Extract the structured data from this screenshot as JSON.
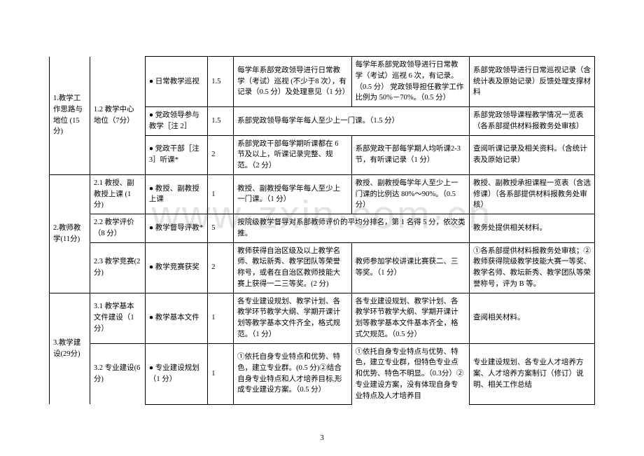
{
  "watermark": "www·zxin·com·cn",
  "page_number": "3",
  "sections": {
    "s1": {
      "title": "1.教学工作思路与地位 (15分)",
      "sub": {
        "s1_2": "1.2 教学中心地位（7分）"
      },
      "rows": {
        "r1": {
          "item": "● 日常教学巡视",
          "score": "1.5",
          "col5": "每学年系部党政领导进行日常教学（考试）巡视 (不少于8 次），有记录（0.5 分）及处理意见（1 分）",
          "col6": "每学年系部党政领导进行日常教学（考试）巡视 6 次，有记录。（0.5 分） 党政领导担任教学工作比例为 50%－70%。（0.5 分）",
          "col7": "系部党政领导进行日常巡视记录（含统计表及原始记录）反馈处理支撑材料"
        },
        "r2": {
          "item": "● 党政领导参与教学［注 2］",
          "score": "1.5",
          "col5": "系部党政领导每学年每人至少上一门课。（1.5 分）",
          "col6": "",
          "col7": "系部党政领导课程教学情况一览表（各系部提供材料报教务处审核）"
        },
        "r3": {
          "item": "● 党政干部［注 3］听课*",
          "score": "2",
          "col5": "系部党政干部每学期听课都在 6 节及以上，听课记录完整、规范。（2 分）",
          "col6": "系部党政干部每学期人均听课2-3 节，有听课记录（1 分）",
          "col7": "查阅听课记录及相关资料。（含统计表及原始记录）"
        }
      }
    },
    "s2": {
      "title": "2.教师教学(11分)",
      "rows": {
        "r1": {
          "sub": "2.1 教授、副教授上课 (1 分)",
          "item": "● 教授、副教授上课",
          "score": "1",
          "col5": "教授、副教授每学年每人至少上一门课。（1 分）",
          "col6": "教授、副教授每学年人至少上一门课的比例达 80%～90%。（0.5 分）",
          "col7": "教授、副教授承担课程一览表（含选修课）（各系部提供材料报教务处审核）"
        },
        "r2": {
          "sub": "2.2 教学评价（8 分）",
          "item": "● 教学督导评教*",
          "score": "5",
          "col5": "按院级教学督导对系部教师评价的平均分排名，第 1 名得 5 分，依次类推。",
          "col6": "",
          "col7": "教务处提供相关材料。"
        },
        "r3": {
          "sub": "2.3 教学竞赛(2 分)",
          "item": "● 教学竞赛获奖",
          "score": "2",
          "col5": "教师获得自治区级及以上教学名师、教坛新秀、教学团队等荣誉称号，或者在自治区教师技能大赛上获得一二三等奖。(2 分)",
          "col6": "教师参加学校讲课比赛获二、三等奖。（1 分）",
          "col7": "①各系部提供材料报教务处审核；②教师获得院级教学技能大赛一等奖、教学名师、教坛新秀、教学团队等荣誉称号，评为 B 等。"
        }
      }
    },
    "s3": {
      "title": "3.教学建设(29分)",
      "rows": {
        "r1": {
          "sub": "3.1 教学基本文件建设（1 分）",
          "item": "● 教学基本文件",
          "score": "1",
          "col5": "各专业建设规划、教学计划、各教学环节教学大纲、学期开课计划等教学基本文件齐全，格式规范。（1 分）",
          "col6": "各专业建设规划、教学计划、各教学环节教学大纲、学期开课计划等教学基本文件基本齐全，格式欠规范。（0.5 分）",
          "col7": "查阅相关材料。"
        },
        "r2": {
          "sub": "3.2 专业建设(6 分)",
          "item": "● 专业建设规划（1 分）",
          "score": "1",
          "col5": "①依托自身专业特点和优势、特色，建立专业群。(0.5 分)②结合自身专业特点和人才培养目标,形成专业建设方案。（0.5 分）",
          "col6": "①依托自身专业特点与优势、特色，建立专业群，但特色专业点和优势、特色不明显。（0.3分）②专业建设方案，没有体现自身专业特点及人才培养目",
          "col7": "专业建设规划、各专业人才培养方案、人才培养方案制订（修订）说明、相关工作总结"
        }
      }
    }
  }
}
